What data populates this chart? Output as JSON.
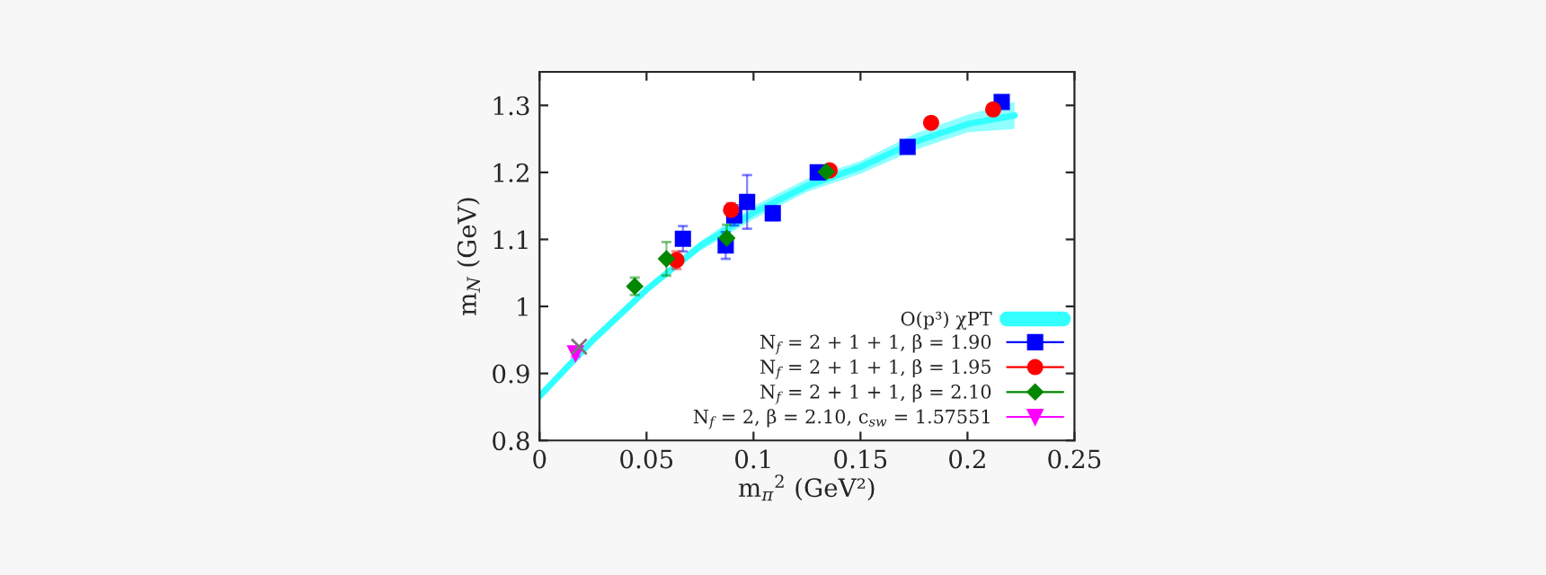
{
  "chart_data": {
    "type": "scatter",
    "xlabel": "m$_{π}$$^{2}$ (GeV²)",
    "ylabel": "m$_{N}$ (GeV)",
    "xlim": [
      0,
      0.25
    ],
    "ylim": [
      0.8,
      1.35
    ],
    "xticks": [
      0,
      0.05,
      0.1,
      0.15,
      0.2,
      0.25
    ],
    "yticks": [
      0.8,
      0.9,
      1,
      1.1,
      1.2,
      1.3
    ],
    "grid": false,
    "legend": "bottom right",
    "series": [
      {
        "name": "O(p³) χPT",
        "type": "line",
        "color": "#33ffff",
        "x": [
          0,
          0.025,
          0.05,
          0.075,
          0.1,
          0.125,
          0.15,
          0.175,
          0.2,
          0.222
        ],
        "values": [
          0.866,
          0.95,
          1.025,
          1.09,
          1.14,
          1.18,
          1.208,
          1.245,
          1.272,
          1.285
        ],
        "lower": [
          0.865,
          0.947,
          1.02,
          1.083,
          1.13,
          1.171,
          1.198,
          1.233,
          1.26,
          1.265
        ],
        "upper": [
          0.867,
          0.953,
          1.03,
          1.097,
          1.15,
          1.19,
          1.217,
          1.257,
          1.286,
          1.305
        ]
      },
      {
        "name": "N$_{f}$ = 2 + 1 + 1, β = 1.90",
        "marker": "square",
        "color": "#0000ff",
        "x": [
          0.067,
          0.087,
          0.091,
          0.097,
          0.109,
          0.13,
          0.172,
          0.216
        ],
        "values": [
          1.101,
          1.091,
          1.136,
          1.156,
          1.139,
          1.2,
          1.238,
          1.305
        ],
        "errors": [
          0.019,
          0.02,
          0.015,
          0.04,
          0.01,
          0.005,
          0.008,
          0.005
        ]
      },
      {
        "name": "N$_{f}$ = 2 + 1 + 1, β = 1.95",
        "marker": "circle",
        "color": "#ff0000",
        "x": [
          0.064,
          0.0895,
          0.1356,
          0.183,
          0.212
        ],
        "values": [
          1.069,
          1.144,
          1.203,
          1.274,
          1.294
        ],
        "errors": [
          0.013,
          0.01,
          0.005,
          0.006,
          0.008
        ]
      },
      {
        "name": "N$_{f}$ = 2 + 1 + 1, β = 2.10",
        "marker": "diamond",
        "color": "#008800",
        "x": [
          0.0445,
          0.0593,
          0.0875,
          0.134
        ],
        "values": [
          1.03,
          1.071,
          1.102,
          1.201
        ],
        "errors": [
          0.013,
          0.025,
          0.02,
          0.005
        ]
      },
      {
        "name": "N$_{f}$ = 2, β = 2.10, c$_{sw}$ = 1.57551",
        "marker": "triangle",
        "color": "#ff00ff",
        "x": [
          0.0168
        ],
        "values": [
          0.93
        ],
        "errors": [
          0.005
        ]
      },
      {
        "marker": "cross",
        "color": "#777777",
        "x": [
          0.0185
        ],
        "values": [
          0.94
        ]
      }
    ]
  }
}
